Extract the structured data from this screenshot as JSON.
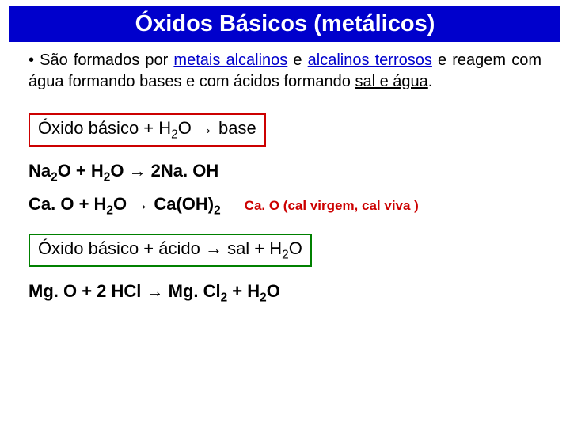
{
  "title": "Óxidos Básicos (metálicos)",
  "para": {
    "p1": "• São formados por ",
    "p2": "metais alcalinos",
    "p3": " e ",
    "p4": "alcalinos terrosos",
    "p5": " e reagem com água formando bases e com ácidos formando ",
    "p6": "sal e água",
    "p7": "."
  },
  "box1_pre": "Óxido básico + H",
  "box1_sub": "2",
  "box1_post": "O → base",
  "eq1_a": "Na",
  "eq1_a2": "2",
  "eq1_b": "O + H",
  "eq1_b2": "2",
  "eq1_c": "O → 2Na. OH",
  "eq2_a": "Ca. O + H",
  "eq2_a2": "2",
  "eq2_b": "O → Ca(OH)",
  "eq2_b2": "2",
  "annot": "Ca. O (cal virgem, cal viva )",
  "box2_pre": "Óxido básico + ácido → sal +  H",
  "box2_sub": "2",
  "box2_post": "O",
  "eq3_a": "Mg. O + 2 HCl → Mg. Cl",
  "eq3_a2": "2",
  "eq3_b": "  + H",
  "eq3_b2": "2",
  "eq3_c": "O",
  "colors": {
    "title_bg": "#0000cc",
    "title_fg": "#ffffff",
    "keyword": "#0000cc",
    "box1_border": "#cc0000",
    "box2_border": "#008000",
    "annot": "#cc0000"
  }
}
